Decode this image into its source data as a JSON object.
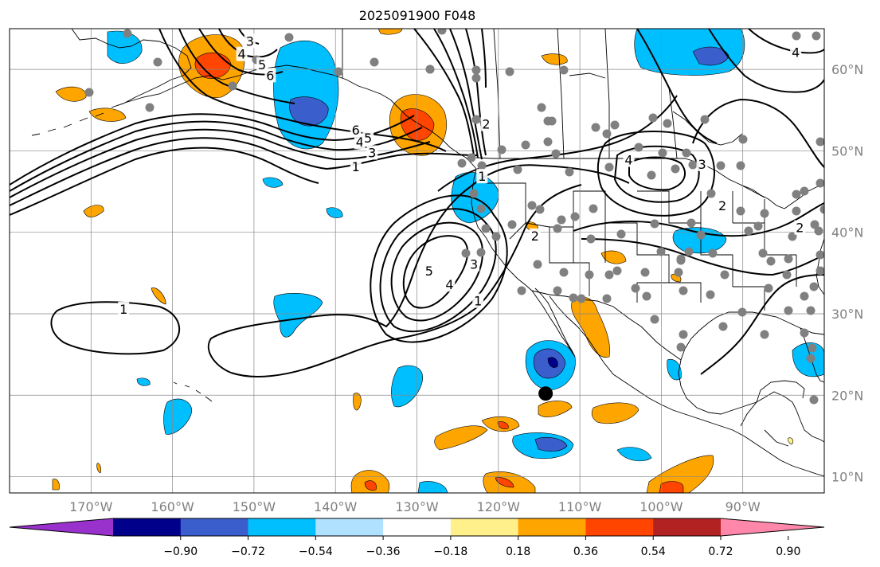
{
  "title": "2025091900 F048",
  "map": {
    "lon_range": [
      -180,
      -80
    ],
    "lat_range": [
      8,
      65
    ],
    "lon_ticks": [
      {
        "value": -170,
        "label": "170°W"
      },
      {
        "value": -160,
        "label": "160°W"
      },
      {
        "value": -150,
        "label": "150°W"
      },
      {
        "value": -140,
        "label": "140°W"
      },
      {
        "value": -130,
        "label": "130°W"
      },
      {
        "value": -120,
        "label": "120°W"
      },
      {
        "value": -110,
        "label": "110°W"
      },
      {
        "value": -100,
        "label": "100°W"
      },
      {
        "value": -90,
        "label": "90°W"
      }
    ],
    "lat_ticks": [
      {
        "value": 10,
        "label": "10°N"
      },
      {
        "value": 20,
        "label": "20°N"
      },
      {
        "value": 30,
        "label": "30°N"
      },
      {
        "value": 40,
        "label": "40°N"
      },
      {
        "value": 50,
        "label": "50°N"
      },
      {
        "value": 60,
        "label": "60°N"
      }
    ],
    "grid": true,
    "marker": {
      "lon": -114.2,
      "lat": 20.2
    }
  },
  "colorbar": {
    "colors": [
      "#9932cc",
      "#00008b",
      "#3a5fcd",
      "#00bfff",
      "#b0e2ff",
      "#ffffff",
      "#fff08c",
      "#ffa500",
      "#ff4500",
      "#b22222",
      "#ff88aa"
    ],
    "tick_labels": [
      "−0.90",
      "−0.72",
      "−0.54",
      "−0.36",
      "−0.18",
      "0.18",
      "0.36",
      "0.54",
      "0.72",
      "0.90"
    ],
    "tick_values": [
      -0.9,
      -0.72,
      -0.54,
      -0.36,
      -0.18,
      0.18,
      0.36,
      0.54,
      0.72,
      0.9
    ],
    "extend": "both"
  },
  "contour_labels": [
    {
      "text": "1",
      "lon": -166,
      "lat": 30.5
    },
    {
      "text": "1",
      "lon": -137.5,
      "lat": 48.0
    },
    {
      "text": "3",
      "lon": -135.5,
      "lat": 49.7
    },
    {
      "text": "4",
      "lon": -137,
      "lat": 51.0
    },
    {
      "text": "5",
      "lon": -136,
      "lat": 51.5
    },
    {
      "text": "6",
      "lon": -137.5,
      "lat": 52.5
    },
    {
      "text": "3",
      "lon": -150.5,
      "lat": 63.4
    },
    {
      "text": "4",
      "lon": -151.5,
      "lat": 61.8
    },
    {
      "text": "5",
      "lon": -149,
      "lat": 60.5
    },
    {
      "text": "6",
      "lon": -148,
      "lat": 59.2
    },
    {
      "text": "2",
      "lon": -121.5,
      "lat": 53.2
    },
    {
      "text": "1",
      "lon": -122,
      "lat": 46.8
    },
    {
      "text": "2",
      "lon": -115.5,
      "lat": 39.5
    },
    {
      "text": "5",
      "lon": -128.5,
      "lat": 35.2
    },
    {
      "text": "4",
      "lon": -126,
      "lat": 33.5
    },
    {
      "text": "3",
      "lon": -123,
      "lat": 36.0
    },
    {
      "text": "1",
      "lon": -122.5,
      "lat": 31.5
    },
    {
      "text": "4",
      "lon": -104,
      "lat": 48.8
    },
    {
      "text": "3",
      "lon": -95,
      "lat": 48.3
    },
    {
      "text": "2",
      "lon": -92.5,
      "lat": 43.2
    },
    {
      "text": "4",
      "lon": -83.5,
      "lat": 62.0
    },
    {
      "text": "2",
      "lon": -83,
      "lat": 40.5
    }
  ]
}
